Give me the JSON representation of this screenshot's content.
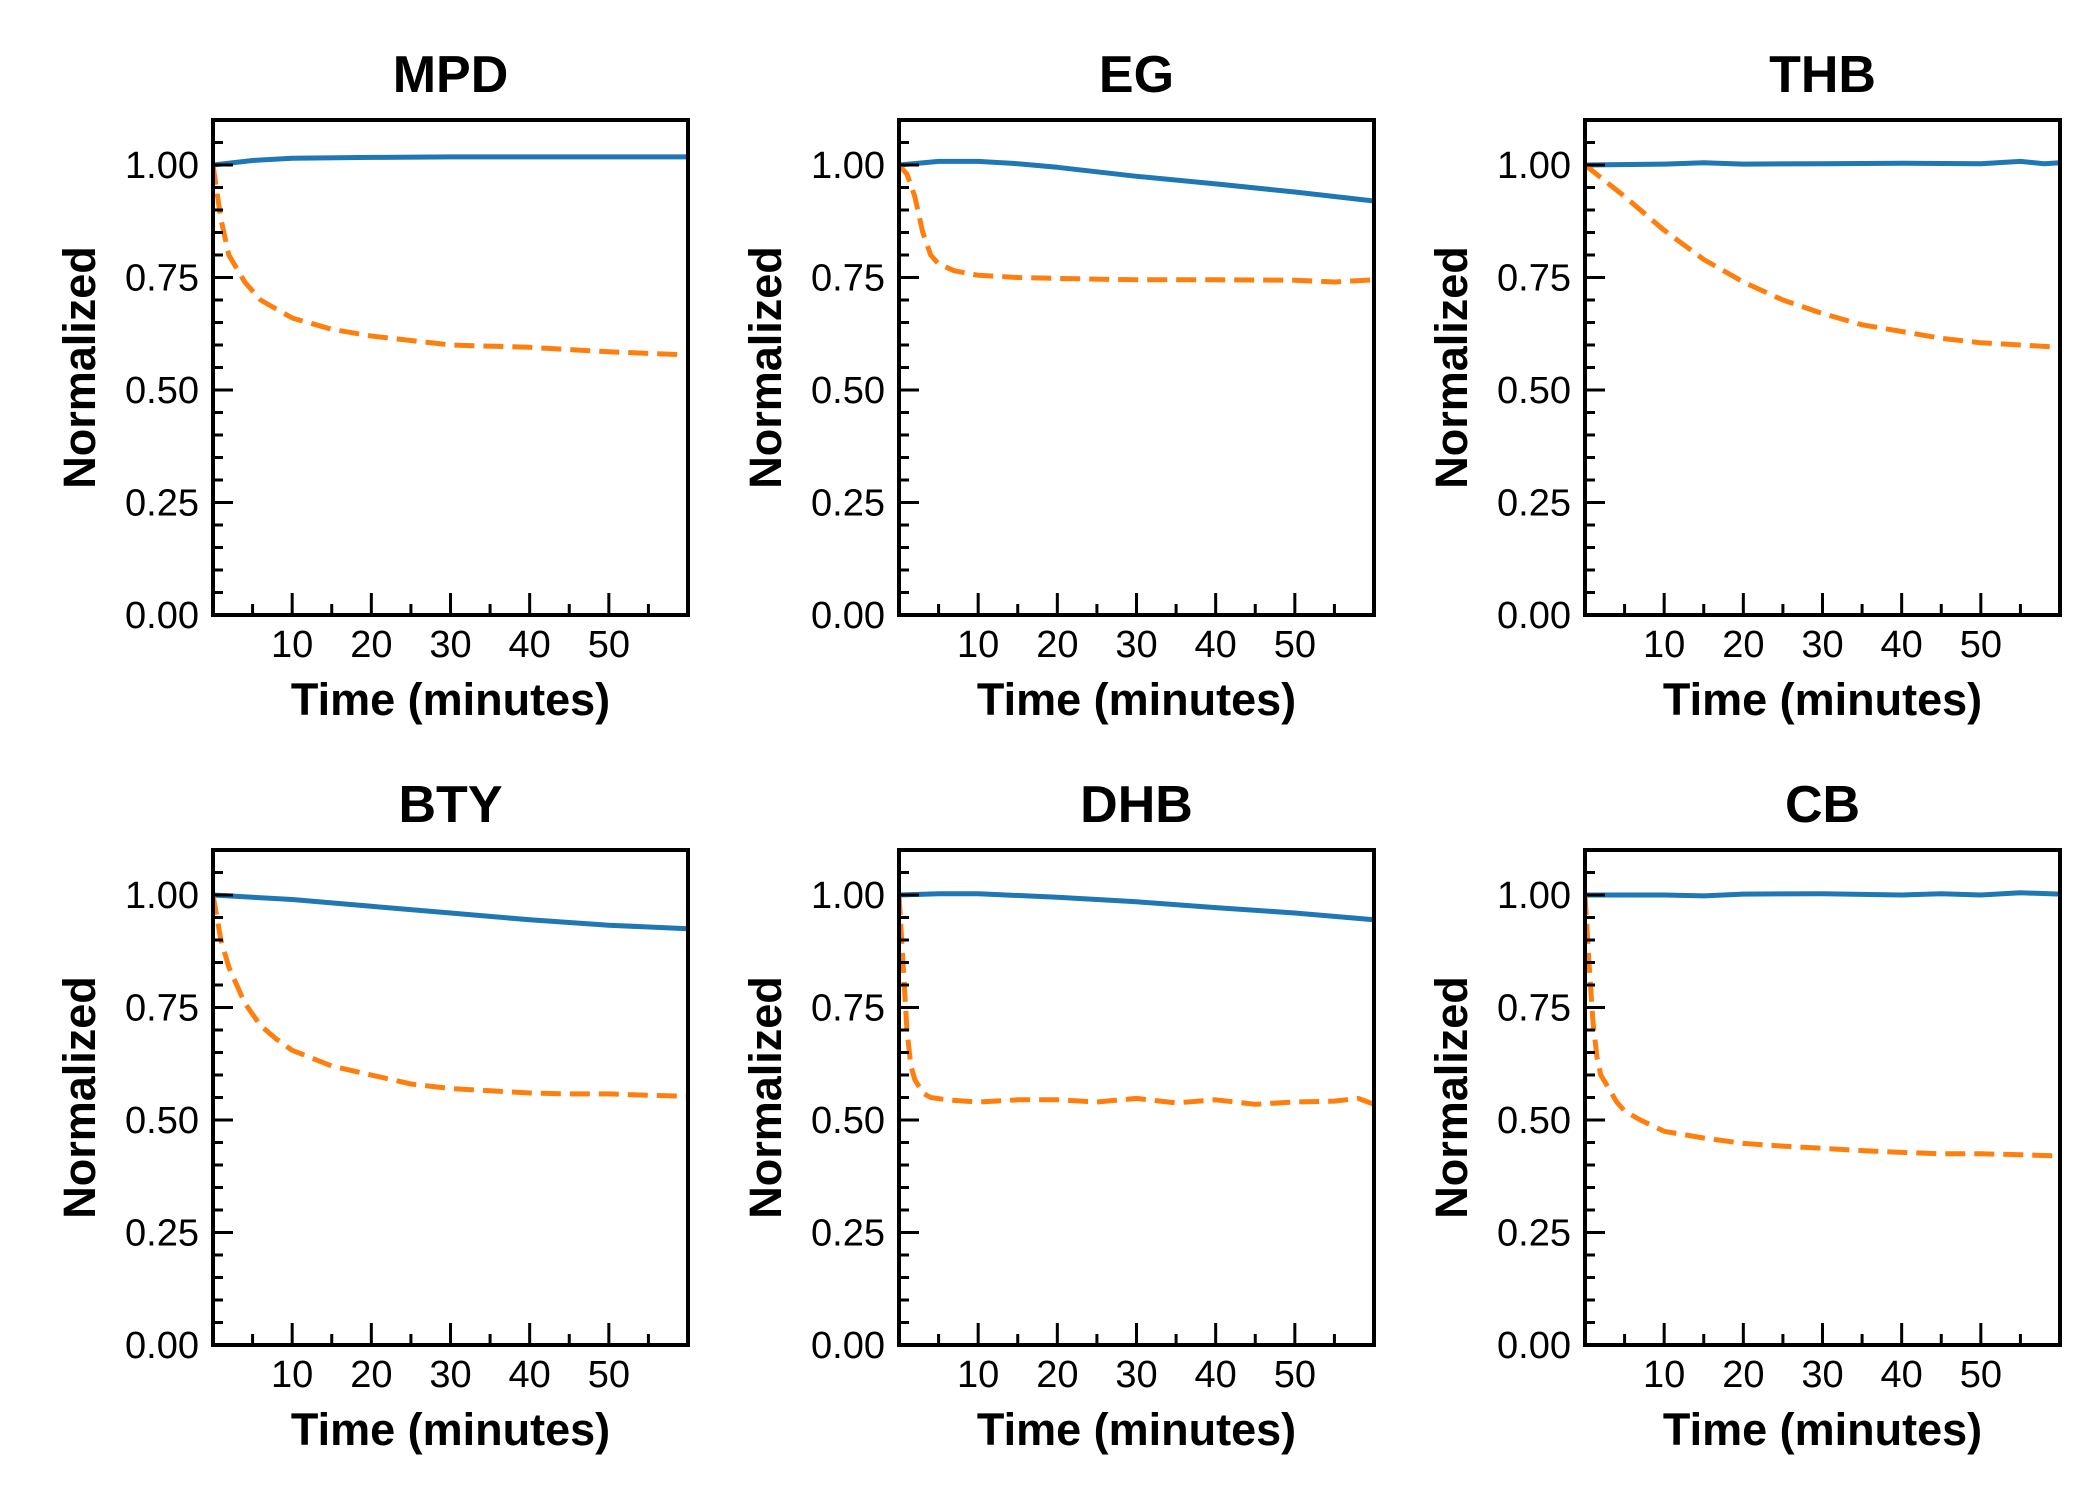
{
  "figure": {
    "colors": {
      "series_1": "#1f77b4",
      "series_2": "#ff7f0e"
    }
  },
  "chart_data": [
    {
      "type": "line",
      "title": "MPD",
      "xlabel": "Time (minutes)",
      "ylabel": "Normalized",
      "xlim": [
        0,
        60
      ],
      "ylim": [
        0,
        1.1
      ],
      "xticks": [
        10,
        20,
        30,
        40,
        50
      ],
      "yticks": [
        "0.00",
        "0.25",
        "0.50",
        "0.75",
        "1.00"
      ],
      "grid": false,
      "series": [
        {
          "style": "solid",
          "color": "#1f77b4",
          "x": [
            0,
            5,
            10,
            20,
            30,
            40,
            50,
            60
          ],
          "y": [
            1.0,
            1.01,
            1.015,
            1.017,
            1.018,
            1.018,
            1.018,
            1.018
          ]
        },
        {
          "style": "dashed",
          "color": "#ff7f0e",
          "x": [
            0,
            1,
            2,
            4,
            6,
            8,
            10,
            15,
            20,
            25,
            30,
            40,
            50,
            60
          ],
          "y": [
            1.0,
            0.88,
            0.8,
            0.74,
            0.7,
            0.68,
            0.66,
            0.635,
            0.62,
            0.61,
            0.6,
            0.595,
            0.585,
            0.578
          ]
        }
      ]
    },
    {
      "type": "line",
      "title": "EG",
      "xlabel": "Time (minutes)",
      "ylabel": "Normalized",
      "xlim": [
        0,
        60
      ],
      "ylim": [
        0,
        1.1
      ],
      "xticks": [
        10,
        20,
        30,
        40,
        50
      ],
      "yticks": [
        "0.00",
        "0.25",
        "0.50",
        "0.75",
        "1.00"
      ],
      "grid": false,
      "series": [
        {
          "style": "solid",
          "color": "#1f77b4",
          "x": [
            0,
            5,
            10,
            15,
            20,
            30,
            40,
            50,
            60
          ],
          "y": [
            1.0,
            1.008,
            1.008,
            1.003,
            0.995,
            0.975,
            0.958,
            0.94,
            0.92
          ]
        },
        {
          "style": "dashed",
          "color": "#ff7f0e",
          "x": [
            0,
            1,
            2,
            3,
            4,
            5,
            7,
            10,
            15,
            20,
            30,
            40,
            50,
            55,
            60
          ],
          "y": [
            1.0,
            0.98,
            0.93,
            0.85,
            0.8,
            0.78,
            0.765,
            0.755,
            0.75,
            0.748,
            0.745,
            0.745,
            0.744,
            0.74,
            0.745
          ]
        }
      ]
    },
    {
      "type": "line",
      "title": "THB",
      "xlabel": "Time (minutes)",
      "ylabel": "Normalized",
      "xlim": [
        0,
        60
      ],
      "ylim": [
        0,
        1.1
      ],
      "xticks": [
        10,
        20,
        30,
        40,
        50
      ],
      "yticks": [
        "0.00",
        "0.25",
        "0.50",
        "0.75",
        "1.00"
      ],
      "grid": false,
      "series": [
        {
          "style": "solid",
          "color": "#1f77b4",
          "x": [
            0,
            10,
            15,
            20,
            30,
            40,
            50,
            55,
            58,
            60
          ],
          "y": [
            1.0,
            1.002,
            1.005,
            1.002,
            1.003,
            1.004,
            1.003,
            1.008,
            1.003,
            1.005
          ]
        },
        {
          "style": "dashed",
          "color": "#ff7f0e",
          "x": [
            0,
            5,
            10,
            15,
            20,
            25,
            30,
            35,
            40,
            45,
            50,
            55,
            60
          ],
          "y": [
            1.0,
            0.93,
            0.855,
            0.79,
            0.74,
            0.7,
            0.67,
            0.645,
            0.63,
            0.615,
            0.605,
            0.6,
            0.595
          ]
        }
      ]
    },
    {
      "type": "line",
      "title": "BTY",
      "xlabel": "Time (minutes)",
      "ylabel": "Normalized",
      "xlim": [
        0,
        60
      ],
      "ylim": [
        0,
        1.1
      ],
      "xticks": [
        10,
        20,
        30,
        40,
        50
      ],
      "yticks": [
        "0.00",
        "0.25",
        "0.50",
        "0.75",
        "1.00"
      ],
      "grid": false,
      "series": [
        {
          "style": "solid",
          "color": "#1f77b4",
          "x": [
            0,
            10,
            20,
            30,
            40,
            50,
            60
          ],
          "y": [
            1.0,
            0.99,
            0.975,
            0.96,
            0.945,
            0.933,
            0.925
          ]
        },
        {
          "style": "dashed",
          "color": "#ff7f0e",
          "x": [
            0,
            1,
            2,
            4,
            6,
            8,
            10,
            15,
            20,
            25,
            30,
            35,
            40,
            45,
            50,
            55,
            60
          ],
          "y": [
            1.0,
            0.9,
            0.84,
            0.76,
            0.71,
            0.68,
            0.655,
            0.62,
            0.6,
            0.58,
            0.57,
            0.565,
            0.56,
            0.558,
            0.558,
            0.555,
            0.553
          ]
        }
      ]
    },
    {
      "type": "line",
      "title": "DHB",
      "xlabel": "Time (minutes)",
      "ylabel": "Normalized",
      "xlim": [
        0,
        60
      ],
      "ylim": [
        0,
        1.1
      ],
      "xticks": [
        10,
        20,
        30,
        40,
        50
      ],
      "yticks": [
        "0.00",
        "0.25",
        "0.50",
        "0.75",
        "1.00"
      ],
      "grid": false,
      "series": [
        {
          "style": "solid",
          "color": "#1f77b4",
          "x": [
            0,
            5,
            10,
            20,
            30,
            40,
            50,
            60
          ],
          "y": [
            1.0,
            1.003,
            1.003,
            0.995,
            0.985,
            0.972,
            0.96,
            0.945
          ]
        },
        {
          "style": "dashed",
          "color": "#ff7f0e",
          "x": [
            0,
            0.5,
            1,
            1.5,
            2,
            3,
            4,
            6,
            10,
            15,
            20,
            25,
            30,
            35,
            40,
            45,
            50,
            55,
            58,
            60
          ],
          "y": [
            1.0,
            0.85,
            0.7,
            0.62,
            0.59,
            0.56,
            0.55,
            0.545,
            0.54,
            0.545,
            0.545,
            0.54,
            0.548,
            0.538,
            0.545,
            0.535,
            0.54,
            0.542,
            0.548,
            0.535
          ]
        }
      ]
    },
    {
      "type": "line",
      "title": "CB",
      "xlabel": "Time (minutes)",
      "ylabel": "Normalized",
      "xlim": [
        0,
        60
      ],
      "ylim": [
        0,
        1.1
      ],
      "xticks": [
        10,
        20,
        30,
        40,
        50
      ],
      "yticks": [
        "0.00",
        "0.25",
        "0.50",
        "0.75",
        "1.00"
      ],
      "grid": false,
      "series": [
        {
          "style": "solid",
          "color": "#1f77b4",
          "x": [
            0,
            10,
            15,
            20,
            30,
            40,
            45,
            50,
            55,
            60
          ],
          "y": [
            1.0,
            1.0,
            0.998,
            1.002,
            1.003,
            1.0,
            1.003,
            1.0,
            1.005,
            1.002
          ]
        },
        {
          "style": "dashed",
          "color": "#ff7f0e",
          "x": [
            0,
            0.5,
            1,
            1.5,
            2,
            3,
            4,
            5,
            7,
            10,
            15,
            20,
            25,
            30,
            35,
            40,
            45,
            50,
            55,
            60
          ],
          "y": [
            1.0,
            0.85,
            0.72,
            0.64,
            0.6,
            0.57,
            0.54,
            0.52,
            0.5,
            0.475,
            0.46,
            0.448,
            0.442,
            0.437,
            0.432,
            0.428,
            0.425,
            0.425,
            0.423,
            0.42
          ]
        }
      ]
    }
  ]
}
